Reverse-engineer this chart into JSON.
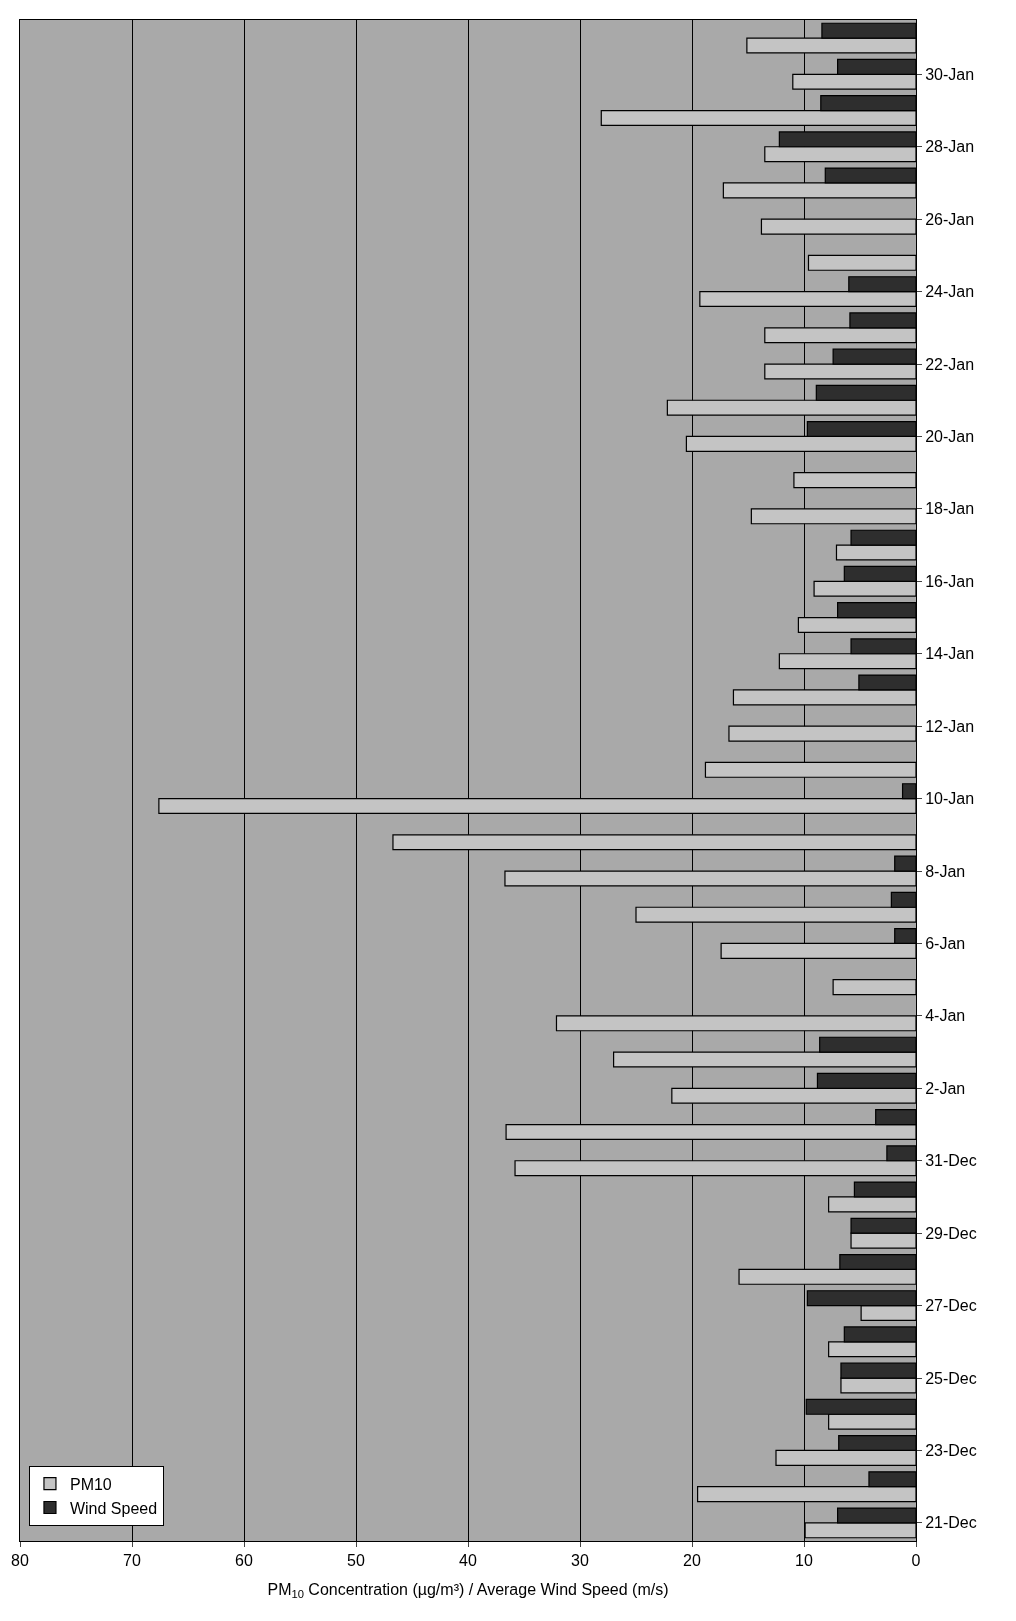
{
  "chart_data": {
    "type": "bar",
    "orientation": "horizontal",
    "xlabel": "PM$_{10}$ Concentration (µg/m³) / Average Wind Speed (m/s)",
    "categories": [
      null,
      "30-Jan",
      null,
      "28-Jan",
      null,
      "26-Jan",
      null,
      "24-Jan",
      null,
      "22-Jan",
      null,
      "20-Jan",
      null,
      "18-Jan",
      null,
      "16-Jan",
      null,
      "14-Jan",
      null,
      "12-Jan",
      null,
      "10-Jan",
      null,
      "8-Jan",
      null,
      "6-Jan",
      null,
      "4-Jan",
      null,
      "2-Jan",
      null,
      "31-Dec",
      null,
      "29-Dec",
      null,
      "27-Dec",
      null,
      "25-Dec",
      null,
      "23-Dec",
      null,
      "21-Dec"
    ],
    "series": [
      {
        "name": "PM10",
        "color": "#c4c4c4",
        "values": [
          15.1,
          11.0,
          28.1,
          13.5,
          17.2,
          13.8,
          9.6,
          19.3,
          13.5,
          13.5,
          22.2,
          20.5,
          10.9,
          14.7,
          7.1,
          9.1,
          10.5,
          12.2,
          16.3,
          16.7,
          18.8,
          67.6,
          46.7,
          36.7,
          25.0,
          17.4,
          7.4,
          32.1,
          27.0,
          21.8,
          36.6,
          35.8,
          7.8,
          5.8,
          15.8,
          4.9,
          7.8,
          6.7,
          7.8,
          12.5,
          19.5,
          9.9
        ]
      },
      {
        "name": "Wind Speed",
        "color": "#2e2e2e",
        "values": [
          8.4,
          7.0,
          8.5,
          12.2,
          8.1,
          null,
          null,
          6.0,
          5.9,
          7.4,
          8.9,
          9.7,
          null,
          null,
          5.8,
          6.4,
          7.0,
          5.8,
          5.1,
          null,
          null,
          1.2,
          null,
          1.9,
          2.2,
          1.9,
          null,
          null,
          8.6,
          8.8,
          3.6,
          2.6,
          5.5,
          5.8,
          6.8,
          9.7,
          6.4,
          6.7,
          9.8,
          6.9,
          4.2,
          7.0
        ]
      }
    ],
    "xlim": [
      80,
      0
    ],
    "xticks": [
      80,
      70,
      60,
      50,
      40,
      30,
      20,
      10,
      0
    ],
    "grid": "x",
    "legend": "bottom left"
  }
}
